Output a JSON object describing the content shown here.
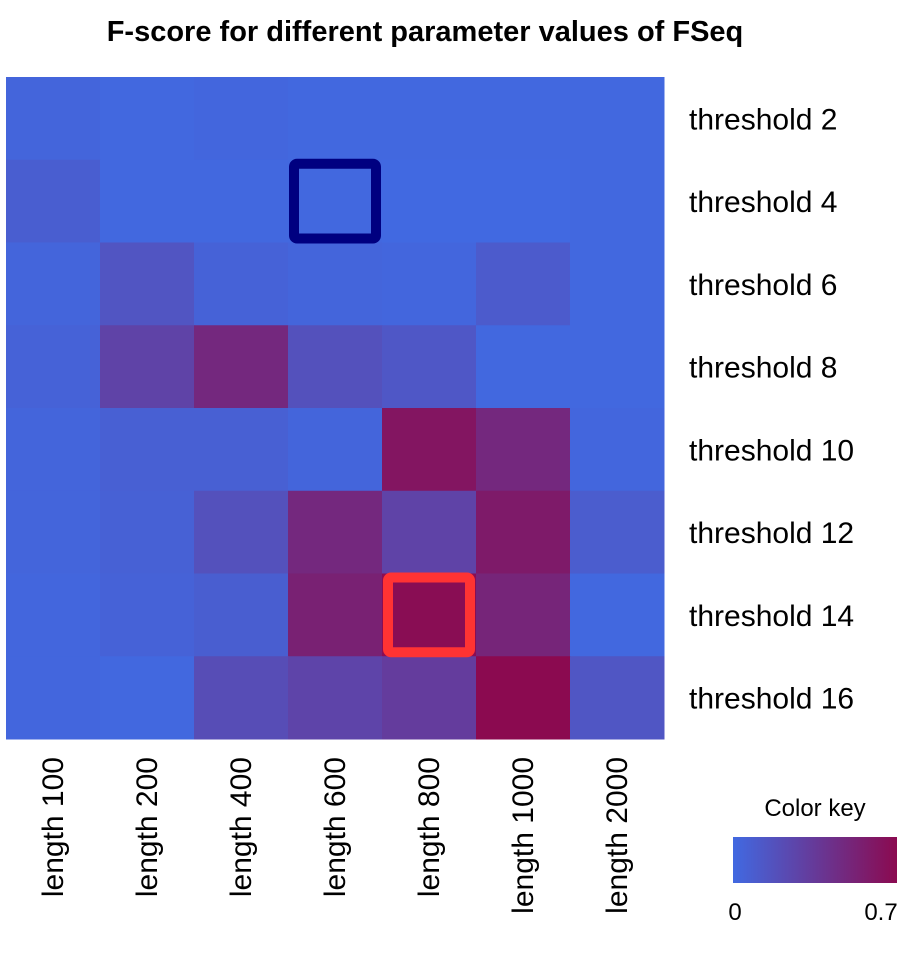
{
  "chart_data": {
    "type": "heatmap",
    "title": "F-score for different parameter values of FSeq",
    "columns": [
      "length 100",
      "length 200",
      "length 400",
      "length 600",
      "length 800",
      "length 1000",
      "length 2000"
    ],
    "rows": [
      "threshold 2",
      "threshold 4",
      "threshold 6",
      "threshold 8",
      "threshold 10",
      "threshold 12",
      "threshold 14",
      "threshold 16"
    ],
    "values": [
      [
        0.03,
        0.01,
        0.02,
        0.01,
        0.01,
        0.01,
        0.01
      ],
      [
        0.08,
        0.01,
        0.01,
        0.01,
        0.0,
        0.0,
        0.01
      ],
      [
        0.03,
        0.15,
        0.05,
        0.03,
        0.02,
        0.1,
        0.01
      ],
      [
        0.05,
        0.28,
        0.48,
        0.18,
        0.13,
        0.01,
        0.01
      ],
      [
        0.03,
        0.07,
        0.07,
        0.03,
        0.62,
        0.48,
        0.02
      ],
      [
        0.03,
        0.06,
        0.18,
        0.48,
        0.28,
        0.58,
        0.09
      ],
      [
        0.02,
        0.05,
        0.08,
        0.53,
        0.68,
        0.5,
        0.01
      ],
      [
        0.02,
        0.01,
        0.21,
        0.27,
        0.33,
        0.7,
        0.14
      ]
    ],
    "highlights": [
      {
        "row": 1,
        "col": 3,
        "color": "#000080"
      },
      {
        "row": 6,
        "col": 4,
        "color": "#ff3333"
      }
    ],
    "color_scale": {
      "low": "#4169e1",
      "high": "#8b0a50",
      "min": 0,
      "max": 0.7
    },
    "legend": {
      "title": "Color key",
      "min_label": "0",
      "max_label": "0.7",
      "placement": "bottom-right"
    }
  }
}
